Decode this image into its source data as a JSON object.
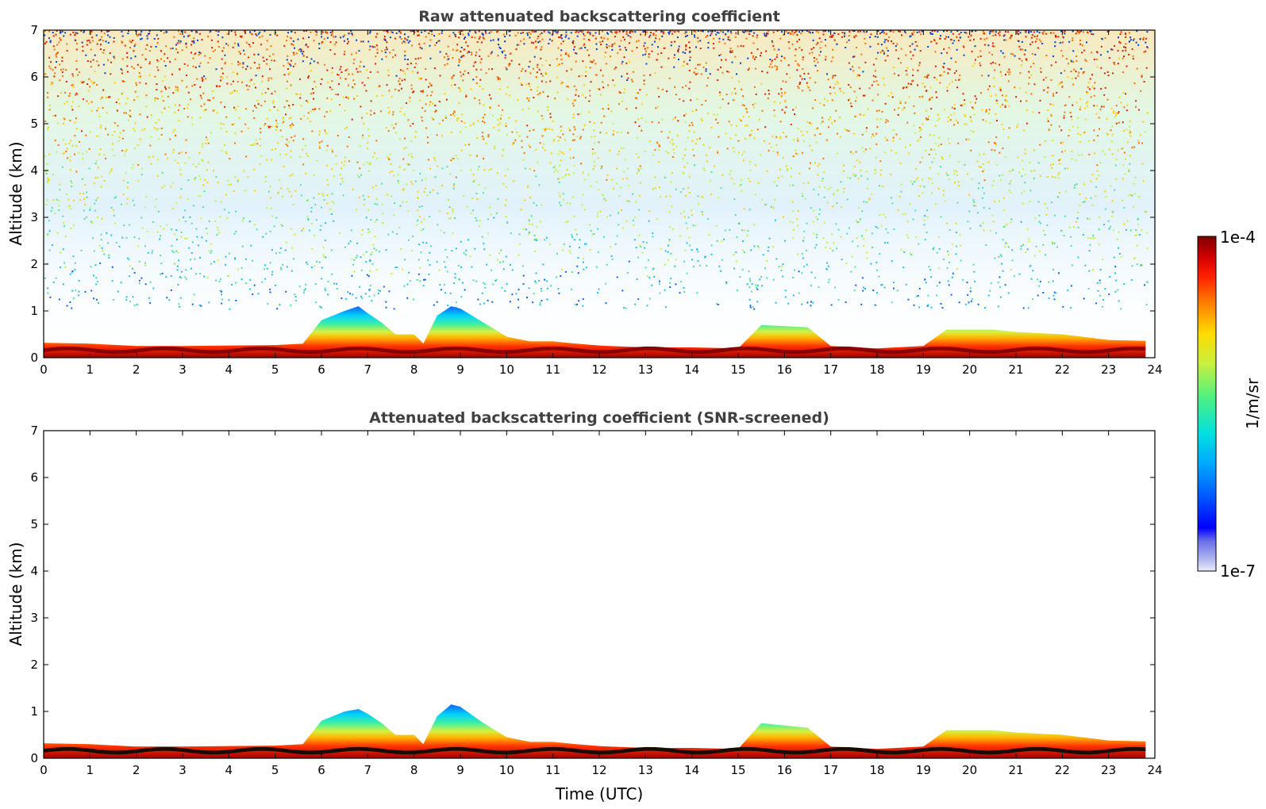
{
  "chart_data": [
    {
      "type": "heatmap",
      "title": "Raw attenuated backscattering coefficient",
      "xlabel": "",
      "ylabel": "Altitude (km)",
      "xlim": [
        0,
        24
      ],
      "ylim": [
        0,
        7
      ],
      "xticks": [
        "0",
        "1",
        "2",
        "3",
        "4",
        "5",
        "6",
        "7",
        "8",
        "9",
        "10",
        "11",
        "12",
        "13",
        "14",
        "15",
        "16",
        "17",
        "18",
        "19",
        "20",
        "21",
        "22",
        "23",
        "24"
      ],
      "yticks": [
        "0",
        "1",
        "2",
        "3",
        "4",
        "5",
        "6",
        "7"
      ],
      "layer_top_km": [
        [
          0,
          0.32
        ],
        [
          1,
          0.3
        ],
        [
          2,
          0.25
        ],
        [
          3,
          0.25
        ],
        [
          4,
          0.26
        ],
        [
          5,
          0.27
        ],
        [
          5.6,
          0.3
        ],
        [
          6,
          0.8
        ],
        [
          6.5,
          1.0
        ],
        [
          6.8,
          1.1
        ],
        [
          7,
          0.95
        ],
        [
          7.3,
          0.75
        ],
        [
          7.6,
          0.5
        ],
        [
          8,
          0.5
        ],
        [
          8.2,
          0.3
        ],
        [
          8.5,
          0.9
        ],
        [
          8.8,
          1.1
        ],
        [
          9,
          1.05
        ],
        [
          9.5,
          0.75
        ],
        [
          10,
          0.45
        ],
        [
          10.5,
          0.35
        ],
        [
          11,
          0.35
        ],
        [
          11.5,
          0.3
        ],
        [
          12,
          0.26
        ],
        [
          13,
          0.22
        ],
        [
          14,
          0.22
        ],
        [
          15,
          0.2
        ],
        [
          15.5,
          0.7
        ],
        [
          16.5,
          0.65
        ],
        [
          17,
          0.25
        ],
        [
          18,
          0.2
        ],
        [
          19,
          0.25
        ],
        [
          19.5,
          0.6
        ],
        [
          20.5,
          0.6
        ],
        [
          21,
          0.55
        ],
        [
          22,
          0.5
        ],
        [
          23,
          0.38
        ],
        [
          23.8,
          0.36
        ]
      ],
      "colormap": {
        "label": "1/m/sr",
        "min": "1e-7",
        "max": "1e-4",
        "colors": [
          "#e8ecfa",
          "#a9b0ee",
          "#6a6ee6",
          "#0000ff",
          "#0055ff",
          "#00a8ff",
          "#00e0e0",
          "#50f080",
          "#c8f040",
          "#ffdc00",
          "#ff8000",
          "#ff2000",
          "#d00000",
          "#7a0000"
        ]
      }
    },
    {
      "type": "heatmap",
      "title": "Attenuated backscattering coefficient (SNR-screened)",
      "xlabel": "Time (UTC)",
      "ylabel": "Altitude (km)",
      "xlim": [
        0,
        24
      ],
      "ylim": [
        0,
        7
      ],
      "xticks": [
        "0",
        "1",
        "2",
        "3",
        "4",
        "5",
        "6",
        "7",
        "8",
        "9",
        "10",
        "11",
        "12",
        "13",
        "14",
        "15",
        "16",
        "17",
        "18",
        "19",
        "20",
        "21",
        "22",
        "23",
        "24"
      ],
      "yticks": [
        "0",
        "1",
        "2",
        "3",
        "4",
        "5",
        "6",
        "7"
      ],
      "layer_top_km": [
        [
          0,
          0.32
        ],
        [
          1,
          0.3
        ],
        [
          2,
          0.25
        ],
        [
          3,
          0.25
        ],
        [
          4,
          0.26
        ],
        [
          5,
          0.27
        ],
        [
          5.6,
          0.3
        ],
        [
          6,
          0.8
        ],
        [
          6.5,
          1.0
        ],
        [
          6.8,
          1.05
        ],
        [
          7,
          0.95
        ],
        [
          7.3,
          0.75
        ],
        [
          7.6,
          0.5
        ],
        [
          8,
          0.5
        ],
        [
          8.2,
          0.3
        ],
        [
          8.5,
          0.9
        ],
        [
          8.8,
          1.15
        ],
        [
          9,
          1.1
        ],
        [
          9.5,
          0.75
        ],
        [
          10,
          0.45
        ],
        [
          10.5,
          0.35
        ],
        [
          11,
          0.35
        ],
        [
          11.5,
          0.3
        ],
        [
          12,
          0.26
        ],
        [
          13,
          0.22
        ],
        [
          14,
          0.22
        ],
        [
          15,
          0.2
        ],
        [
          15.5,
          0.75
        ],
        [
          16.5,
          0.65
        ],
        [
          17,
          0.25
        ],
        [
          18,
          0.2
        ],
        [
          19,
          0.25
        ],
        [
          19.5,
          0.6
        ],
        [
          20.5,
          0.6
        ],
        [
          21,
          0.55
        ],
        [
          22,
          0.5
        ],
        [
          23,
          0.38
        ],
        [
          23.8,
          0.36
        ]
      ]
    }
  ]
}
